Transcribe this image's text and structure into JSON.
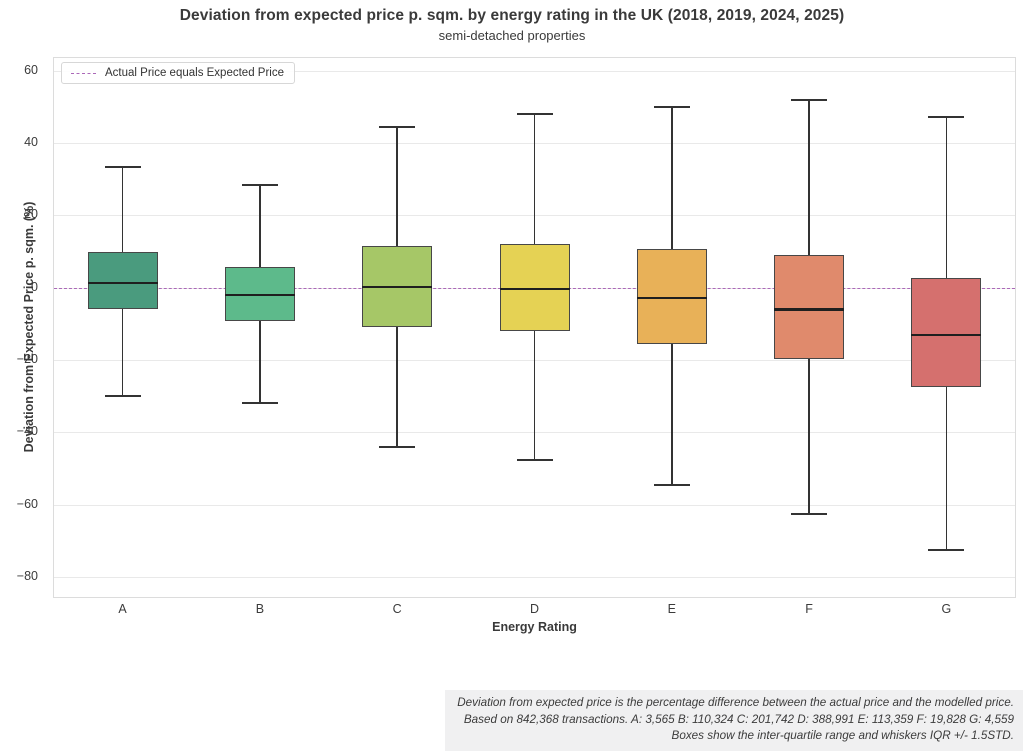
{
  "chart_data": {
    "type": "box",
    "title": "Deviation from expected price p. sqm. by energy rating in the UK (2018, 2019, 2024, 2025)",
    "subtitle": "semi-detached properties",
    "xlabel": "Energy Rating",
    "ylabel": "Deviation from Expected Price p. sqm. (%)",
    "ylim": [
      -85.5,
      63.5
    ],
    "yticks": [
      60,
      40,
      20,
      0,
      -20,
      -40,
      -60,
      -80
    ],
    "ytick_labels": [
      "60",
      "40",
      "20",
      "0",
      "−20",
      "−40",
      "−60",
      "−80"
    ],
    "grid": "horizontal",
    "categories": [
      "A",
      "B",
      "C",
      "D",
      "E",
      "F",
      "G"
    ],
    "series": [
      {
        "category": "A",
        "color": "#4a9b7e",
        "whisker_low": -29.8,
        "q1": -6.0,
        "median": 1.3,
        "q3": 9.8,
        "whisker_high": 33.5
      },
      {
        "category": "B",
        "color": "#5dba8b",
        "whisker_low": -31.8,
        "q1": -9.3,
        "median": -2.0,
        "q3": 5.8,
        "whisker_high": 28.5
      },
      {
        "category": "C",
        "color": "#a6c767",
        "whisker_low": -44.0,
        "q1": -10.8,
        "median": 0.2,
        "q3": 11.5,
        "whisker_high": 44.5
      },
      {
        "category": "D",
        "color": "#e5d254",
        "whisker_low": -47.5,
        "q1": -12.0,
        "median": -0.3,
        "q3": 12.0,
        "whisker_high": 48.0
      },
      {
        "category": "E",
        "color": "#e8b158",
        "whisker_low": -54.5,
        "q1": -15.5,
        "median": -2.7,
        "q3": 10.7,
        "whisker_high": 50.0
      },
      {
        "category": "F",
        "color": "#e08a6c",
        "whisker_low": -62.5,
        "q1": -19.8,
        "median": -6.0,
        "q3": 9.0,
        "whisker_high": 52.0
      },
      {
        "category": "G",
        "color": "#d5706e",
        "whisker_low": -72.5,
        "q1": -27.5,
        "median": -13.0,
        "q3": 2.7,
        "whisker_high": 47.3
      }
    ],
    "reference_line": {
      "y": 0,
      "color": "#ab68b8",
      "style": "dashed"
    },
    "legend": {
      "position": "upper-left",
      "items": [
        {
          "label": "Actual Price equals Expected Price",
          "style": "dashed",
          "color": "#ab68b8"
        }
      ]
    },
    "transaction_counts": {
      "total": "842,368",
      "A": "3,565",
      "B": "110,324",
      "C": "201,742",
      "D": "388,991",
      "E": "113,359",
      "F": "19,828",
      "G": "4,559"
    },
    "footnote_lines": [
      "Deviation from expected price is the percentage difference between the actual price and the modelled price.",
      "Based on 842,368 transactions. A: 3,565 B: 110,324 C: 201,742 D: 388,991 E: 113,359 F: 19,828 G: 4,559",
      "Boxes show the inter-quartile range and whiskers IQR +/- 1.5STD."
    ]
  }
}
